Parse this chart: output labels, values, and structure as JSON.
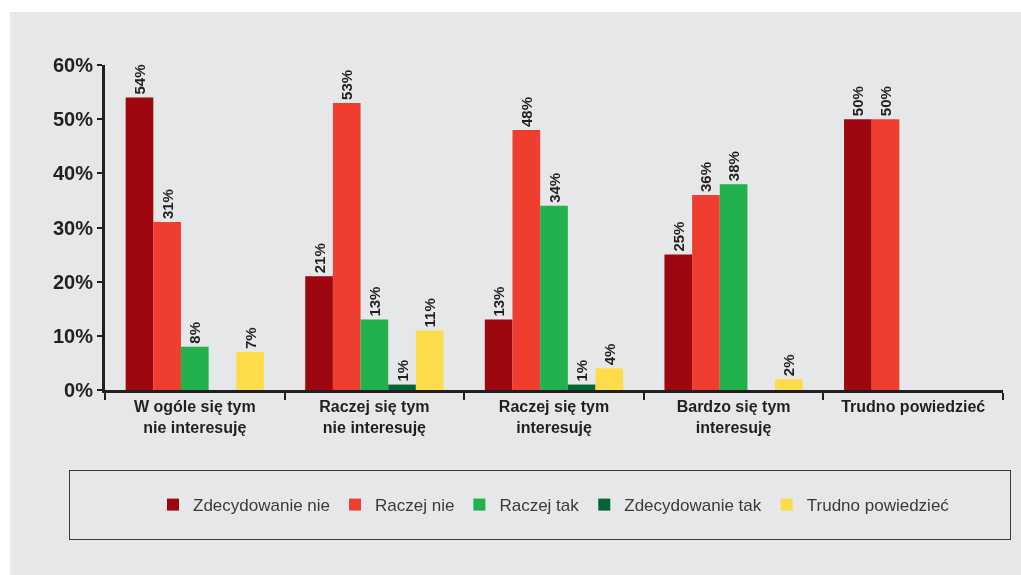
{
  "chart_data": {
    "type": "bar",
    "categories": [
      "W ogóle się tym nie interesuję",
      "Raczej się tym nie interesuję",
      "Raczej się tym interesuję",
      "Bardzo się tym interesuję",
      "Trudno powiedzieć"
    ],
    "series": [
      {
        "name": "Zdecydowanie nie",
        "color": "#9e0610",
        "values": [
          54,
          21,
          13,
          25,
          50
        ],
        "value_labels": [
          "54%",
          "21%",
          "13%",
          "25%",
          "50%"
        ]
      },
      {
        "name": "Raczej nie",
        "color": "#ef3e30",
        "values": [
          31,
          53,
          48,
          36,
          50
        ],
        "value_labels": [
          "31%",
          "53%",
          "48%",
          "36%",
          "50%"
        ]
      },
      {
        "name": "Raczej tak",
        "color": "#22b14c",
        "values": [
          8,
          13,
          34,
          38,
          null
        ],
        "value_labels": [
          "8%",
          "13%",
          "34%",
          "38%",
          null
        ]
      },
      {
        "name": "Zdecydowanie tak",
        "color": "#006633",
        "values": [
          null,
          1,
          1,
          null,
          null
        ],
        "value_labels": [
          null,
          "1%",
          "1%",
          null,
          null
        ]
      },
      {
        "name": "Trudno powiedzieć",
        "color": "#fddc4c",
        "values": [
          7,
          11,
          4,
          2,
          null
        ],
        "value_labels": [
          "7%",
          "11%",
          "4%",
          "2%",
          null
        ]
      }
    ],
    "ylim": [
      0,
      60
    ],
    "yticks": [
      {
        "value": 0,
        "label": "0%"
      },
      {
        "value": 10,
        "label": "10%"
      },
      {
        "value": 20,
        "label": "20%"
      },
      {
        "value": 30,
        "label": "30%"
      },
      {
        "value": 40,
        "label": "40%"
      },
      {
        "value": 50,
        "label": "50%"
      },
      {
        "value": 60,
        "label": "60%"
      }
    ],
    "legend": "bottom"
  }
}
